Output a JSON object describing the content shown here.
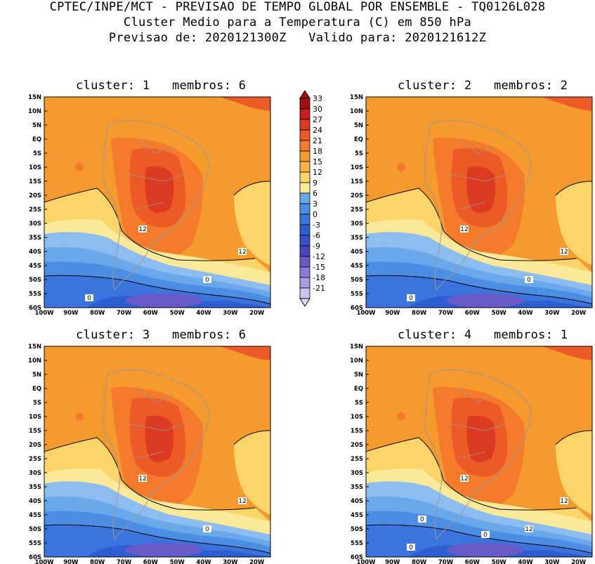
{
  "header": {
    "line1": "CPTEC/INPE/MCT - PREVISAO DE TEMPO GLOBAL POR ENSEMBLE - TQ0126L028",
    "line2": "Cluster Medio para a Temperatura (C) em 850 hPa",
    "line3": "Previsao de: 2020121300Z   Valido para: 2020121612Z"
  },
  "axes": {
    "lat_labels": [
      "15N",
      "10N",
      "5N",
      "EQ",
      "5S",
      "10S",
      "15S",
      "20S",
      "25S",
      "30S",
      "35S",
      "40S",
      "45S",
      "50S",
      "55S",
      "60S"
    ],
    "lon_labels": [
      "100W",
      "90W",
      "80W",
      "70W",
      "60W",
      "50W",
      "40W",
      "30W",
      "20W"
    ]
  },
  "panels": [
    {
      "title": "cluster: 1   membros: 6",
      "contour_labels": [
        "12",
        "12",
        "0",
        "0"
      ]
    },
    {
      "title": "cluster: 2   membros: 2",
      "contour_labels": [
        "12",
        "12",
        "0",
        "0"
      ]
    },
    {
      "title": "cluster: 3   membros: 6",
      "contour_labels": [
        "12",
        "12",
        "0"
      ]
    },
    {
      "title": "cluster: 4   membros: 1",
      "contour_labels": [
        "12",
        "12",
        "12",
        "0",
        "0",
        "0"
      ]
    }
  ],
  "colorbar": {
    "labels": [
      "33",
      "30",
      "27",
      "24",
      "21",
      "18",
      "15",
      "12",
      "9",
      "6",
      "3",
      "0",
      "-3",
      "-6",
      "-9",
      "-12",
      "-15",
      "-18",
      "-21"
    ],
    "colors": [
      "#a01010",
      "#c42020",
      "#dd3a22",
      "#ec5a28",
      "#f47a2c",
      "#f79a2e",
      "#fbb443",
      "#fcd46a",
      "#fbe99a",
      "#6aa8ec",
      "#4c8ee4",
      "#3a74dc",
      "#2e5fd2",
      "#3a4ec8",
      "#4a46c0",
      "#6a5ac8",
      "#8a7ad6",
      "#aa9ce0",
      "#ccc4ee",
      "#e0dcf4"
    ]
  },
  "chart_data": {
    "type": "heatmap",
    "variable": "Temperatura (C) em 850 hPa",
    "x_range": [
      "100W",
      "15W"
    ],
    "y_range": [
      "60S",
      "15N"
    ],
    "levels": [
      -21,
      -18,
      -15,
      -12,
      -9,
      -6,
      -3,
      0,
      3,
      6,
      9,
      12,
      15,
      18,
      21,
      24,
      27,
      30,
      33
    ],
    "contour_lines": [
      0,
      12
    ]
  }
}
